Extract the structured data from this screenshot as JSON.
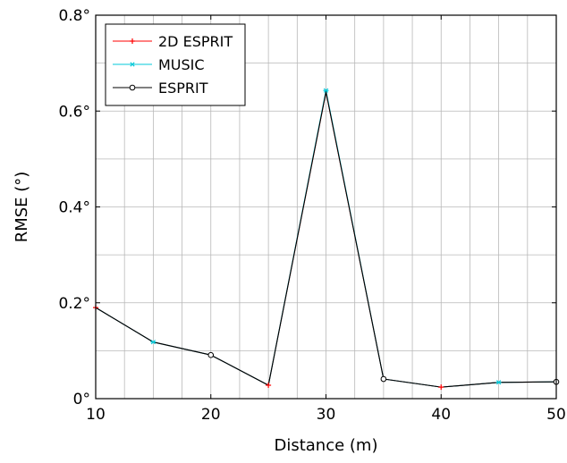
{
  "chart_data": {
    "type": "line",
    "xlabel": "Distance (m)",
    "ylabel": "RMSE (°)",
    "xlim": [
      10,
      50
    ],
    "ylim": [
      0,
      0.8
    ],
    "x_ticks": [
      10,
      20,
      30,
      40,
      50
    ],
    "x_tick_labels": [
      "10",
      "20",
      "30",
      "40",
      "50"
    ],
    "y_ticks": [
      0,
      0.2,
      0.4,
      0.6,
      0.8
    ],
    "y_tick_labels": [
      "0°",
      "0.2°",
      "0.4°",
      "0.6°",
      "0.8°"
    ],
    "grid": true,
    "legend_position": "top-left",
    "x": [
      10,
      15,
      20,
      25,
      30,
      35,
      40,
      45,
      50
    ],
    "series": [
      {
        "name": "2D ESPRIT",
        "color": "#ff0000",
        "marker": "plus",
        "values": [
          0.19,
          0.118,
          0.091,
          0.028,
          0.64,
          0.041,
          0.024,
          0.034,
          0.035
        ]
      },
      {
        "name": "MUSIC",
        "color": "#00c8d8",
        "marker": "star",
        "values": [
          0.19,
          0.118,
          0.091,
          0.028,
          0.643,
          0.041,
          0.024,
          0.034,
          0.035
        ]
      },
      {
        "name": "ESPRIT",
        "color": "#000000",
        "marker": "circle",
        "values": [
          0.19,
          0.118,
          0.091,
          0.028,
          0.64,
          0.041,
          0.024,
          0.034,
          0.035
        ]
      }
    ]
  }
}
